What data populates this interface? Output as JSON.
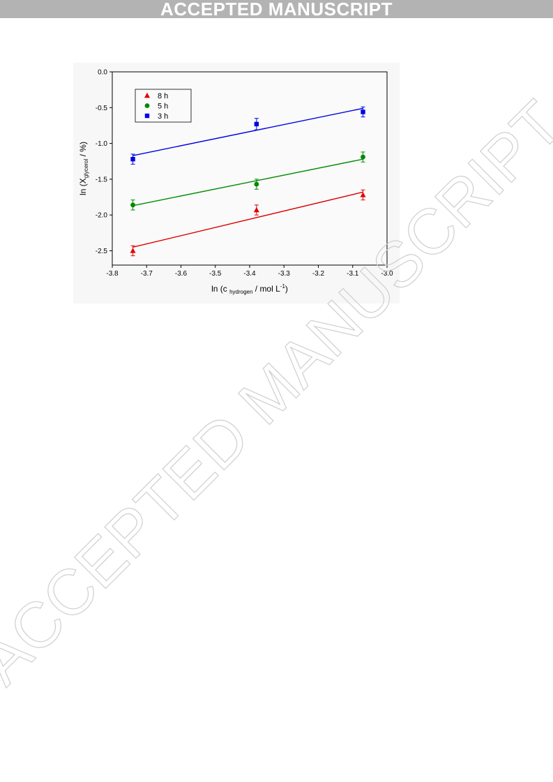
{
  "header": {
    "banner_text": "ACCEPTED MANUSCRIPT"
  },
  "watermark": {
    "text": "ACCEPTED MANUSCRIPT"
  },
  "chart_data": {
    "type": "scatter",
    "title": "",
    "xlabel_parts": {
      "pre": "ln (c",
      "sub": "hydrogen",
      "mid": " / mol L",
      "sup": "-1",
      "post": ")"
    },
    "ylabel_parts": {
      "pre": "ln (X",
      "sub": "glycerol",
      "post": " / %)"
    },
    "xlim": [
      -3.8,
      -3.0
    ],
    "ylim": [
      -2.7,
      0.0
    ],
    "x_ticks": [
      -3.8,
      -3.7,
      -3.6,
      -3.5,
      -3.4,
      -3.3,
      -3.2,
      -3.1,
      -3.0
    ],
    "x_tick_labels": [
      "-3.8",
      "-3.7",
      "-3.6",
      "-3.5",
      "-3.4",
      "-3.3",
      "-3.2",
      "-3.1",
      "-3.0"
    ],
    "y_ticks": [
      0.0,
      -0.5,
      -1.0,
      -1.5,
      -2.0,
      -2.5
    ],
    "y_tick_labels": [
      "0.0",
      "-0.5",
      "-1.0",
      "-1.5",
      "-2.0",
      "-2.5"
    ],
    "legend_position": "top-left",
    "grid": false,
    "series": [
      {
        "name": "8 h",
        "marker": "triangle",
        "color": "#e00000",
        "x": [
          -3.74,
          -3.38,
          -3.07
        ],
        "y": [
          -2.5,
          -1.93,
          -1.72
        ],
        "err": [
          0.07,
          0.07,
          0.07
        ],
        "fit": {
          "x": [
            -3.74,
            -3.07
          ],
          "y": [
            -2.45,
            -1.68
          ]
        }
      },
      {
        "name": "5 h",
        "marker": "circle",
        "color": "#008a00",
        "x": [
          -3.74,
          -3.38,
          -3.07
        ],
        "y": [
          -1.86,
          -1.57,
          -1.19
        ],
        "err": [
          0.07,
          0.07,
          0.07
        ],
        "fit": {
          "x": [
            -3.74,
            -3.07
          ],
          "y": [
            -1.87,
            -1.22
          ]
        }
      },
      {
        "name": "3 h",
        "marker": "square",
        "color": "#0000e6",
        "x": [
          -3.74,
          -3.38,
          -3.07
        ],
        "y": [
          -1.22,
          -0.73,
          -0.56
        ],
        "err": [
          0.07,
          0.08,
          0.07
        ],
        "fit": {
          "x": [
            -3.74,
            -3.07
          ],
          "y": [
            -1.17,
            -0.51
          ]
        }
      }
    ]
  }
}
